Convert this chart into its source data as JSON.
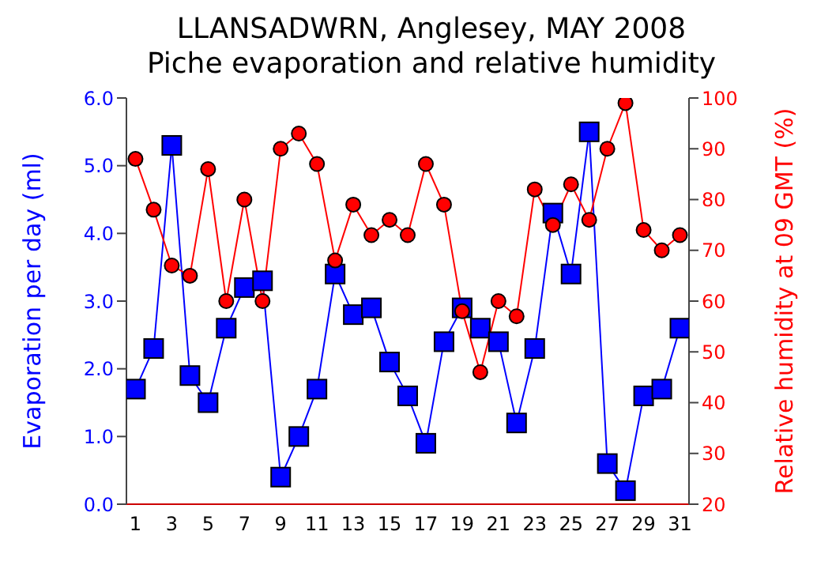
{
  "chart_data": {
    "type": "line",
    "title": "LLANSADWRN, Anglesey, MAY 2008",
    "subtitle": "Piche evaporation and relative humidity",
    "ylabel": "Evaporation per day (ml)",
    "y2label": "Relative humidity at 09 GMT (%)",
    "x": [
      1,
      2,
      3,
      4,
      5,
      6,
      7,
      8,
      9,
      10,
      11,
      12,
      13,
      14,
      15,
      16,
      17,
      18,
      19,
      20,
      21,
      22,
      23,
      24,
      25,
      26,
      27,
      28,
      29,
      30,
      31
    ],
    "xlim": [
      0.5,
      31.5
    ],
    "xticks": [
      1,
      3,
      5,
      7,
      9,
      11,
      13,
      15,
      17,
      19,
      21,
      23,
      25,
      27,
      29,
      31
    ],
    "ylim": [
      0,
      6
    ],
    "yticks": [
      {
        "value": 0,
        "label": "0.0"
      },
      {
        "value": 1,
        "label": "1.0"
      },
      {
        "value": 2,
        "label": "2.0"
      },
      {
        "value": 3,
        "label": "3.0"
      },
      {
        "value": 4,
        "label": "4.0"
      },
      {
        "value": 5,
        "label": "5.0"
      },
      {
        "value": 6,
        "label": "6.0"
      }
    ],
    "y2lim": [
      20,
      100
    ],
    "y2ticks": [
      20,
      30,
      40,
      50,
      60,
      70,
      80,
      90,
      100
    ],
    "series": [
      {
        "color": "#0000ff",
        "marker": "square",
        "values": [
          1.7,
          2.3,
          5.3,
          1.9,
          1.5,
          2.6,
          3.2,
          3.3,
          0.4,
          1.0,
          1.7,
          3.4,
          2.8,
          2.9,
          2.1,
          1.6,
          0.9,
          2.4,
          2.9,
          2.6,
          2.4,
          1.2,
          2.3,
          4.3,
          3.4,
          5.5,
          0.6,
          0.2,
          1.6,
          1.7,
          2.6
        ]
      },
      {
        "color": "#ff0000",
        "marker": "circle",
        "axis": "y2",
        "values": [
          88,
          78,
          67,
          65,
          86,
          60,
          80,
          60,
          90,
          93,
          87,
          68,
          79,
          73,
          76,
          73,
          87,
          79,
          58,
          46,
          60,
          57,
          82,
          75,
          83,
          76,
          90,
          99,
          74,
          70,
          73
        ]
      }
    ]
  }
}
